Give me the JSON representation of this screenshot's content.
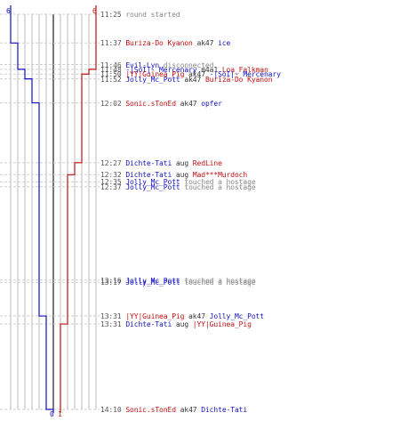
{
  "colors": {
    "blue_team": "#1010c0",
    "red_team": "#c01010",
    "timestamp": "#555555",
    "info": "#888888",
    "grid": "#bbbbbb",
    "dash": "#cfcfcf",
    "center_line": "#555555"
  },
  "score_labels": {
    "blue_start": "6",
    "red_start": "6",
    "blue_end": "0",
    "red_end": "1"
  },
  "chart_data": {
    "type": "line",
    "x": [
      "11:25",
      "11:37",
      "11:46",
      "11:48",
      "11:50",
      "11:52",
      "12:02",
      "12:27",
      "12:32",
      "12:35",
      "12:37",
      "13:16",
      "13:17",
      "13:31",
      "13:31",
      "14:10"
    ],
    "series": [
      {
        "values": [
          6,
          5,
          5,
          4,
          4,
          3,
          2,
          2,
          2,
          2,
          2,
          2,
          2,
          1,
          1,
          0
        ]
      },
      {
        "values": [
          6,
          6,
          6,
          5,
          4,
          4,
          4,
          3,
          2,
          2,
          2,
          2,
          2,
          2,
          1,
          1
        ]
      }
    ],
    "ylim": [
      0,
      6
    ]
  },
  "events": [
    {
      "time": "11:25",
      "parts": [
        {
          "text": "round started",
          "kind": "info"
        }
      ]
    },
    {
      "time": "11:37",
      "parts": [
        {
          "text": "Buriza-Do Kyanon",
          "kind": "red"
        },
        {
          "text": " ak47 ",
          "kind": "plain"
        },
        {
          "text": "ice",
          "kind": "blue"
        }
      ]
    },
    {
      "time": "11:46",
      "parts": [
        {
          "text": "Evil-Lyn",
          "kind": "blue"
        },
        {
          "text": " disconnected",
          "kind": "info"
        }
      ]
    },
    {
      "time": "11:48",
      "parts": [
        {
          "text": "-|SoI|- Mercenary",
          "kind": "blue"
        },
        {
          "text": " m4a1 ",
          "kind": "plain"
        },
        {
          "text": "Loa_Falkman",
          "kind": "red"
        }
      ]
    },
    {
      "time": "11:50",
      "parts": [
        {
          "text": "|YY|Guinea_Pig",
          "kind": "red"
        },
        {
          "text": " ak47 ",
          "kind": "plain"
        },
        {
          "text": "-|SoI|- Mercenary",
          "kind": "blue"
        }
      ]
    },
    {
      "time": "11:52",
      "parts": [
        {
          "text": "Jolly_Mc_Pott",
          "kind": "blue"
        },
        {
          "text": " ak47 ",
          "kind": "plain"
        },
        {
          "text": "Buriza-Do Kyanon",
          "kind": "red"
        }
      ]
    },
    {
      "time": "12:02",
      "parts": [
        {
          "text": "Sonic.sTonEd",
          "kind": "red"
        },
        {
          "text": " ak47 ",
          "kind": "plain"
        },
        {
          "text": "opfer",
          "kind": "blue"
        }
      ]
    },
    {
      "time": "12:27",
      "parts": [
        {
          "text": "Dichte-Tati",
          "kind": "blue"
        },
        {
          "text": " aug ",
          "kind": "plain"
        },
        {
          "text": "RedLine",
          "kind": "red"
        }
      ]
    },
    {
      "time": "12:32",
      "parts": [
        {
          "text": "Dichte-Tati",
          "kind": "blue"
        },
        {
          "text": " aug ",
          "kind": "plain"
        },
        {
          "text": "Mad***Murdoch",
          "kind": "red"
        }
      ]
    },
    {
      "time": "12:35",
      "parts": [
        {
          "text": "Jolly_Mc_Pott",
          "kind": "blue"
        },
        {
          "text": " touched a hostage",
          "kind": "info"
        }
      ]
    },
    {
      "time": "12:37",
      "parts": [
        {
          "text": "Jolly_Mc_Pott",
          "kind": "blue"
        },
        {
          "text": " touched a hostage",
          "kind": "info"
        }
      ]
    },
    {
      "time": "13:16",
      "parts": [
        {
          "text": "Jolly_Mc_Pott",
          "kind": "blue"
        },
        {
          "text": " touched a hostage",
          "kind": "info"
        }
      ]
    },
    {
      "time": "13:17",
      "parts": [
        {
          "text": "Jolly_Mc_Pott",
          "kind": "blue"
        },
        {
          "text": " touched a hostage",
          "kind": "info"
        }
      ]
    },
    {
      "time": "13:31",
      "parts": [
        {
          "text": "|YY|Guinea_Pig",
          "kind": "red"
        },
        {
          "text": " ak47 ",
          "kind": "plain"
        },
        {
          "text": "Jolly_Mc_Pott",
          "kind": "blue"
        }
      ]
    },
    {
      "time": "13:31",
      "parts": [
        {
          "text": "Dichte-Tati",
          "kind": "blue"
        },
        {
          "text": " aug ",
          "kind": "plain"
        },
        {
          "text": "|YY|Guinea_Pig",
          "kind": "red"
        }
      ]
    },
    {
      "time": "14:10",
      "parts": [
        {
          "text": "Sonic.sTonEd",
          "kind": "red"
        },
        {
          "text": " ak47 ",
          "kind": "plain"
        },
        {
          "text": "Dichte-Tati",
          "kind": "blue"
        }
      ]
    }
  ]
}
